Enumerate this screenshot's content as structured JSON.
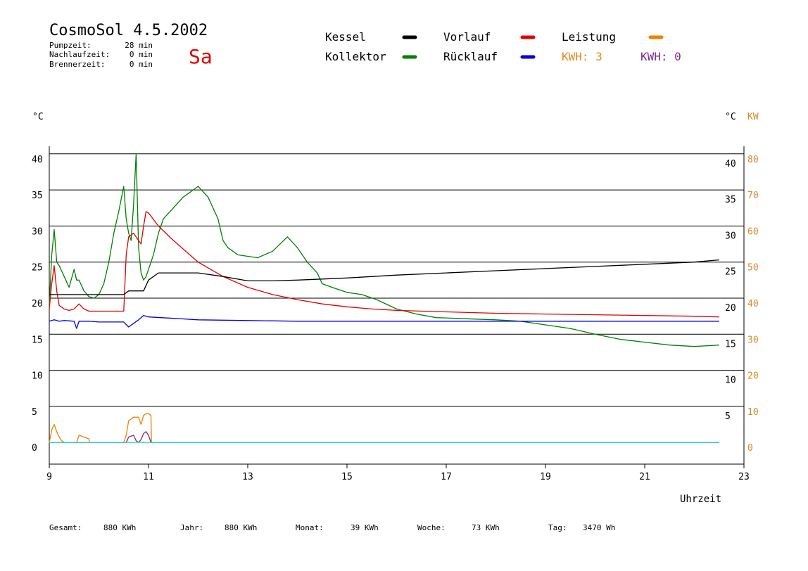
{
  "header": {
    "title": "CosmoSol 4.5.2002",
    "day": "Sa",
    "stats": [
      {
        "label": "Pumpzeit:",
        "value": "28 min"
      },
      {
        "label": "Nachlaufzeit:",
        "value": "0 min"
      },
      {
        "label": "Brennerzeit:",
        "value": "0 min"
      }
    ]
  },
  "legend": {
    "items": [
      {
        "label": "Kessel",
        "color": "#000000"
      },
      {
        "label": "Vorlauf",
        "color": "#e00000"
      },
      {
        "label": "Leistung",
        "color": "#f08000"
      },
      {
        "label": "Kollektor",
        "color": "#008000"
      },
      {
        "label": "Rücklauf",
        "color": "#0000e0"
      }
    ],
    "kwh_1": "KWH: 3",
    "kwh_2": "KWH: 0",
    "kwh_1_color": "#e08a1e",
    "kwh_2_color": "#7a2a8a"
  },
  "axes": {
    "left_unit": "°C",
    "right_unit": "°C",
    "right_kw_unit": "KW",
    "xlabel": "Uhrzeit",
    "x_ticks": [
      "9",
      "11",
      "13",
      "15",
      "17",
      "19",
      "21",
      "23"
    ],
    "y_ticks_left": [
      "0",
      "5",
      "10",
      "15",
      "20",
      "25",
      "30",
      "35",
      "40"
    ],
    "y_ticks_right": [
      "5",
      "10",
      "15",
      "20",
      "25",
      "30",
      "35",
      "40"
    ],
    "y_ticks_kw": [
      "0",
      "10",
      "20",
      "30",
      "40",
      "50",
      "60",
      "70",
      "80"
    ]
  },
  "footer": [
    {
      "label": "Gesamt:",
      "value": "880 KWh"
    },
    {
      "label": "Jahr:",
      "value": "880 KWh"
    },
    {
      "label": "Monat:",
      "value": "39 KWh"
    },
    {
      "label": "Woche:",
      "value": "73 KWh"
    },
    {
      "label": "Tag:",
      "value": "3470 Wh"
    }
  ],
  "chart_data": {
    "type": "line",
    "xlim": [
      9,
      23
    ],
    "ylim": [
      -3,
      43
    ],
    "y2lim": [
      -6,
      86
    ],
    "xlabel": "Uhrzeit",
    "ylabel": "°C",
    "y2label": "KW",
    "series": [
      {
        "name": "Kollektor",
        "color": "#008000",
        "axis": "temp",
        "x": [
          9.0,
          9.05,
          9.1,
          9.15,
          9.2,
          9.3,
          9.4,
          9.5,
          9.55,
          9.6,
          9.7,
          9.8,
          9.9,
          10.0,
          10.1,
          10.2,
          10.3,
          10.4,
          10.5,
          10.55,
          10.6,
          10.65,
          10.7,
          10.75,
          10.8,
          10.85,
          10.9,
          10.95,
          11.0,
          11.1,
          11.2,
          11.3,
          11.5,
          11.7,
          11.9,
          12.0,
          12.2,
          12.4,
          12.5,
          12.6,
          12.8,
          13.0,
          13.2,
          13.5,
          13.8,
          14.0,
          14.2,
          14.4,
          14.5,
          14.7,
          15.0,
          15.3,
          15.6,
          16.0,
          16.4,
          16.8,
          17.2,
          17.6,
          18.0,
          18.5,
          19.0,
          19.5,
          20.0,
          20.5,
          21.0,
          21.5,
          22.0,
          22.5
        ],
        "y": [
          19.0,
          26.0,
          29.5,
          25.0,
          24.5,
          23.0,
          21.5,
          24.0,
          22.5,
          22.5,
          21.0,
          20.2,
          20.0,
          20.5,
          22.0,
          25.0,
          29.0,
          32.0,
          35.5,
          31.0,
          29.0,
          28.0,
          33.0,
          40.0,
          27.0,
          23.5,
          22.5,
          23.0,
          24.0,
          26.0,
          29.0,
          31.0,
          32.5,
          34.0,
          35.0,
          35.5,
          34.0,
          31.0,
          28.0,
          27.0,
          26.0,
          25.8,
          25.6,
          26.5,
          28.5,
          27.0,
          25.0,
          23.5,
          22.0,
          21.5,
          20.8,
          20.5,
          19.8,
          18.5,
          17.8,
          17.3,
          17.2,
          17.1,
          17.0,
          16.8,
          16.3,
          15.8,
          15.0,
          14.3,
          13.9,
          13.5,
          13.3,
          13.5
        ]
      },
      {
        "name": "Vorlauf",
        "color": "#e00000",
        "axis": "temp",
        "x": [
          9.0,
          9.05,
          9.1,
          9.15,
          9.2,
          9.3,
          9.4,
          9.5,
          9.6,
          9.7,
          9.8,
          10.0,
          10.2,
          10.4,
          10.5,
          10.55,
          10.6,
          10.7,
          10.8,
          10.85,
          10.9,
          10.95,
          11.0,
          11.2,
          11.5,
          12.0,
          12.5,
          13.0,
          13.5,
          14.0,
          14.5,
          15.0,
          15.5,
          16.0,
          17.0,
          18.0,
          19.0,
          20.0,
          21.0,
          22.0,
          22.5
        ],
        "y": [
          18.5,
          22.0,
          24.5,
          21.0,
          19.0,
          18.5,
          18.3,
          18.5,
          19.2,
          18.5,
          18.2,
          18.2,
          18.2,
          18.2,
          18.2,
          26.0,
          28.5,
          29.0,
          28.0,
          27.5,
          30.0,
          32.0,
          31.8,
          30.0,
          28.0,
          25.0,
          23.0,
          21.5,
          20.5,
          19.8,
          19.2,
          18.8,
          18.5,
          18.3,
          18.1,
          17.9,
          17.8,
          17.7,
          17.6,
          17.5,
          17.4
        ]
      },
      {
        "name": "Kessel",
        "color": "#000000",
        "axis": "temp",
        "x": [
          9.0,
          9.2,
          9.5,
          10.0,
          10.5,
          10.6,
          10.9,
          11.0,
          11.2,
          12.0,
          12.5,
          13.0,
          13.5,
          14.0,
          15.0,
          16.0,
          17.0,
          18.0,
          19.0,
          20.0,
          21.0,
          22.0,
          22.5
        ],
        "y": [
          20.5,
          20.5,
          20.5,
          20.5,
          20.5,
          21.0,
          21.0,
          22.5,
          23.5,
          23.5,
          23.0,
          22.4,
          22.4,
          22.5,
          22.8,
          23.2,
          23.5,
          23.8,
          24.1,
          24.4,
          24.7,
          25.0,
          25.3
        ]
      },
      {
        "name": "Rücklauf",
        "color": "#0000e0",
        "axis": "temp",
        "x": [
          9.0,
          9.1,
          9.2,
          9.3,
          9.5,
          9.55,
          9.6,
          9.8,
          10.0,
          10.5,
          10.6,
          10.8,
          10.9,
          11.0,
          11.5,
          12.0,
          13.0,
          14.0,
          15.0,
          16.0,
          17.0,
          18.0,
          19.0,
          20.0,
          21.0,
          22.0,
          22.5
        ],
        "y": [
          16.8,
          17.0,
          16.8,
          16.9,
          16.8,
          15.8,
          16.8,
          16.8,
          16.7,
          16.7,
          16.0,
          17.0,
          17.6,
          17.4,
          17.2,
          17.0,
          16.9,
          16.8,
          16.8,
          16.8,
          16.8,
          16.8,
          16.8,
          16.8,
          16.8,
          16.8,
          16.8
        ]
      },
      {
        "name": "Leistung",
        "color": "#f08000",
        "axis": "kw",
        "x": [
          9.0,
          9.05,
          9.1,
          9.15,
          9.2,
          9.25,
          9.3,
          9.55,
          9.6,
          9.7,
          9.8,
          9.81,
          10.5,
          10.55,
          10.6,
          10.7,
          10.8,
          10.85,
          10.9,
          10.95,
          11.0,
          11.05,
          11.06,
          22.5
        ],
        "y": [
          0,
          3.5,
          5.0,
          3.0,
          1.5,
          0.5,
          0,
          0,
          2.0,
          1.5,
          1.0,
          0,
          0,
          2.0,
          6.0,
          7.0,
          7.0,
          5.0,
          7.5,
          8.0,
          8.0,
          7.5,
          0,
          0
        ]
      },
      {
        "name": "Leistung-2",
        "color": "#7a2a8a",
        "axis": "kw",
        "x": [
          9.0,
          10.55,
          10.6,
          10.7,
          10.75,
          10.8,
          10.85,
          10.9,
          10.95,
          11.0,
          11.05,
          22.5
        ],
        "y": [
          0,
          0,
          1.5,
          2.0,
          0.5,
          0,
          0.8,
          2.5,
          3.0,
          2.0,
          0,
          0
        ]
      },
      {
        "name": "Nullinie",
        "color": "#30d8d8",
        "axis": "temp",
        "x": [
          9.0,
          22.5
        ],
        "y": [
          0,
          0
        ]
      }
    ]
  }
}
